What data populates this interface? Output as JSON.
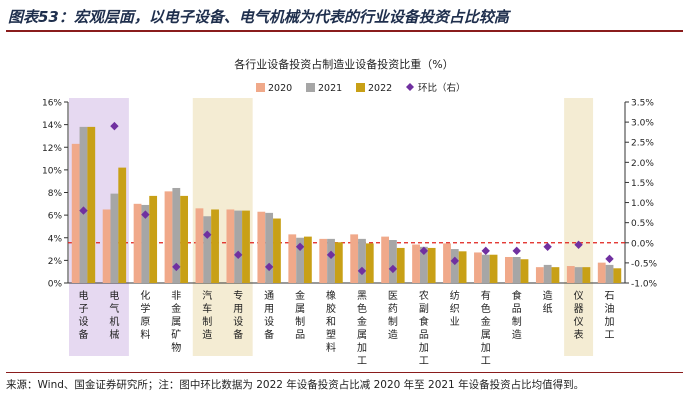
{
  "figure_title": "图表53：宏观层面，以电子设备、电气机械为代表的行业设备投资占比较高",
  "source_note": "来源：Wind、国金证券研究所；注：图中环比数据为 2022 年设备投资占比减 2020 年至 2021 年设备投资占比均值得到。",
  "chart_data": {
    "type": "bar",
    "title": "各行业设备投资占制造业设备投资比重（%）",
    "categories": [
      "电子设备",
      "电气机械",
      "化学原料",
      "非金属矿物",
      "汽车制造",
      "专用设备",
      "通用设备",
      "金属制品",
      "橡胶和塑料",
      "黑色金属加工",
      "医药制造",
      "农副食品加工",
      "纺织业",
      "有色金属加工",
      "食品制造",
      "造纸",
      "仪器仪表",
      "石油加工"
    ],
    "series": [
      {
        "name": "2020",
        "color": "#f0a98a",
        "values": [
          12.3,
          6.5,
          7.0,
          8.1,
          6.6,
          6.5,
          6.3,
          4.3,
          3.9,
          4.3,
          4.1,
          3.4,
          3.5,
          2.7,
          2.3,
          1.4,
          1.5,
          1.8
        ]
      },
      {
        "name": "2021",
        "color": "#a6a6a6",
        "values": [
          13.8,
          7.9,
          6.9,
          8.4,
          5.9,
          6.4,
          6.2,
          4.0,
          3.9,
          3.9,
          3.8,
          3.2,
          3.0,
          2.5,
          2.3,
          1.6,
          1.4,
          1.6
        ]
      },
      {
        "name": "2022",
        "color": "#c8a016",
        "values": [
          13.8,
          10.2,
          7.7,
          7.7,
          6.5,
          6.4,
          5.7,
          4.1,
          3.6,
          3.5,
          3.1,
          3.1,
          2.8,
          2.5,
          2.1,
          1.4,
          1.4,
          1.3
        ]
      }
    ],
    "secondary_series": {
      "name": "环比（右）",
      "color": "#7030a0",
      "marker": "diamond",
      "values": [
        0.8,
        2.9,
        0.7,
        -0.6,
        0.2,
        -0.3,
        -0.6,
        -0.1,
        -0.3,
        -0.7,
        -0.65,
        -0.2,
        -0.45,
        -0.2,
        -0.2,
        -0.1,
        -0.05,
        -0.4
      ]
    },
    "y_left": {
      "min": 0,
      "max": 16,
      "step": 2,
      "unit": "%"
    },
    "y_right": {
      "min": -1.0,
      "max": 3.5,
      "step": 0.5,
      "unit": "%"
    },
    "right_zero_line": {
      "style": "dashed",
      "color": "#e0201b"
    },
    "highlight_categories": [
      {
        "category": "电子设备",
        "span": 2,
        "color": "#e6d9f1"
      },
      {
        "category": "汽车制造",
        "span": 2,
        "color": "#f4ecd3"
      },
      {
        "category": "仪器仪表",
        "span": 1,
        "color": "#f4ecd3"
      }
    ],
    "legend": {
      "placement": "top-center"
    },
    "grid": false
  }
}
